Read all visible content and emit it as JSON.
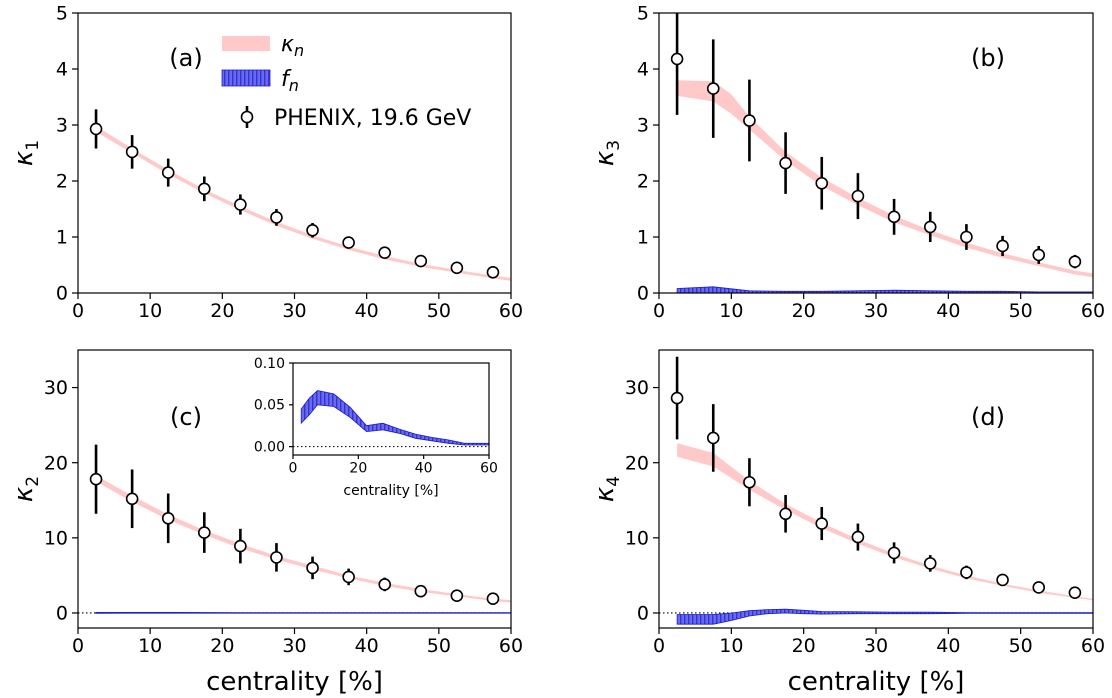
{
  "chart_data": {
    "type": "scatter",
    "legend": {
      "placement": "top",
      "entries": [
        {
          "key": "kappa",
          "symbol": "κ",
          "sub": "n",
          "style": "band",
          "color": "#ffc9c9"
        },
        {
          "key": "f",
          "symbol": "f",
          "sub": "n",
          "style": "hatched-band",
          "color": "#6a6af0"
        },
        {
          "key": "phenix",
          "label": "PHENIX, 19.6 GeV",
          "style": "open-circle-errorbar",
          "color": "#000000"
        }
      ]
    },
    "colors": {
      "kappa_band": "#ffc9c9",
      "f_band": "#6a6af0",
      "f_edge": "#1c1cc8",
      "data": "#000000",
      "zero_line": "#000000"
    },
    "panels": [
      {
        "id": "a",
        "label": "(a)",
        "ysymbol": "κ",
        "ysub": "1",
        "xlim": [
          0,
          60
        ],
        "ylim": [
          0,
          5
        ],
        "xticks": [
          0,
          10,
          20,
          30,
          40,
          50,
          60
        ],
        "yticks": [
          0,
          1,
          2,
          3,
          4,
          5
        ],
        "show_xlabel": false,
        "data": {
          "x": [
            2.5,
            7.5,
            12.5,
            17.5,
            22.5,
            27.5,
            32.5,
            37.5,
            42.5,
            47.5,
            52.5,
            57.5
          ],
          "y": [
            2.93,
            2.52,
            2.15,
            1.86,
            1.58,
            1.35,
            1.12,
            0.9,
            0.72,
            0.57,
            0.45,
            0.37
          ],
          "err": [
            0.35,
            0.3,
            0.25,
            0.22,
            0.18,
            0.15,
            0.13,
            0.07,
            0.05,
            0.04,
            0.03,
            0.03
          ]
        },
        "kappa_band": {
          "x": [
            2.5,
            7.5,
            12.5,
            17.5,
            22.5,
            27.5,
            32.5,
            37.5,
            42.5,
            47.5,
            52.5,
            57.5,
            60
          ],
          "lo": [
            2.88,
            2.5,
            2.12,
            1.78,
            1.48,
            1.2,
            0.97,
            0.77,
            0.6,
            0.47,
            0.36,
            0.26,
            0.22
          ],
          "hi": [
            2.98,
            2.58,
            2.2,
            1.85,
            1.55,
            1.27,
            1.03,
            0.83,
            0.66,
            0.52,
            0.41,
            0.31,
            0.27
          ]
        }
      },
      {
        "id": "b",
        "label": "(b)",
        "ysymbol": "κ",
        "ysub": "3",
        "xlim": [
          0,
          60
        ],
        "ylim": [
          0,
          5
        ],
        "xticks": [
          0,
          10,
          20,
          30,
          40,
          50,
          60
        ],
        "yticks": [
          0,
          1,
          2,
          3,
          4,
          5
        ],
        "show_xlabel": false,
        "data": {
          "x": [
            2.5,
            7.5,
            12.5,
            17.5,
            22.5,
            27.5,
            32.5,
            37.5,
            42.5,
            47.5,
            52.5,
            57.5
          ],
          "y": [
            4.18,
            3.65,
            3.08,
            2.32,
            1.96,
            1.73,
            1.36,
            1.18,
            1.0,
            0.84,
            0.68,
            0.56
          ],
          "err": [
            1.0,
            0.88,
            0.73,
            0.55,
            0.47,
            0.41,
            0.32,
            0.27,
            0.23,
            0.18,
            0.16,
            0.12
          ]
        },
        "kappa_band": {
          "x": [
            2.5,
            7.5,
            10,
            12.5,
            17.5,
            22.5,
            27.5,
            32.5,
            37.5,
            42.5,
            47.5,
            52.5,
            57.5,
            60
          ],
          "lo": [
            3.52,
            3.42,
            3.2,
            2.92,
            2.36,
            1.91,
            1.57,
            1.26,
            1.03,
            0.81,
            0.63,
            0.48,
            0.33,
            0.28
          ],
          "hi": [
            3.8,
            3.78,
            3.55,
            3.15,
            2.52,
            2.06,
            1.7,
            1.38,
            1.12,
            0.9,
            0.71,
            0.55,
            0.4,
            0.35
          ]
        },
        "f_band": {
          "x": [
            2.5,
            7.5,
            12.5,
            17.5,
            22.5,
            27.5,
            32.5,
            37.5,
            42.5,
            47.5,
            52.5,
            57.5,
            60
          ],
          "lo": [
            -0.07,
            -0.06,
            -0.03,
            -0.03,
            -0.04,
            -0.02,
            -0.01,
            -0.01,
            -0.02,
            -0.01,
            -0.01,
            -0.01,
            -0.01
          ],
          "hi": [
            0.08,
            0.11,
            0.04,
            0.03,
            0.03,
            0.04,
            0.05,
            0.04,
            0.03,
            0.03,
            0.02,
            0.02,
            0.02
          ]
        }
      },
      {
        "id": "c",
        "label": "(c)",
        "ysymbol": "κ",
        "ysub": "2",
        "xlim": [
          0,
          60
        ],
        "ylim": [
          -2,
          35
        ],
        "xticks": [
          0,
          10,
          20,
          30,
          40,
          50,
          60
        ],
        "yticks": [
          0,
          10,
          20,
          30
        ],
        "show_xlabel": true,
        "data": {
          "x": [
            2.5,
            7.5,
            12.5,
            17.5,
            22.5,
            27.5,
            32.5,
            37.5,
            42.5,
            47.5,
            52.5,
            57.5
          ],
          "y": [
            17.8,
            15.2,
            12.6,
            10.7,
            8.9,
            7.4,
            6.0,
            4.8,
            3.8,
            2.9,
            2.3,
            1.9
          ],
          "err": [
            4.6,
            3.9,
            3.3,
            2.7,
            2.3,
            1.9,
            1.5,
            1.1,
            0.9,
            0.6,
            0.4,
            0.3
          ]
        },
        "kappa_band": {
          "x": [
            2.5,
            7.5,
            12.5,
            17.5,
            22.5,
            27.5,
            32.5,
            37.5,
            42.5,
            47.5,
            52.5,
            57.5,
            60
          ],
          "lo": [
            17.5,
            14.8,
            12.4,
            10.4,
            8.6,
            7.1,
            5.8,
            4.6,
            3.6,
            2.8,
            2.2,
            1.6,
            1.4
          ],
          "hi": [
            18.3,
            15.6,
            13.1,
            11.0,
            9.2,
            7.6,
            6.3,
            5.0,
            4.0,
            3.2,
            2.5,
            1.9,
            1.7
          ]
        },
        "f_band": {
          "x": [
            2.5,
            7.5,
            12.5,
            17.5,
            22.5,
            27.5,
            32.5,
            37.5,
            42.5,
            47.5,
            52.5,
            57.5,
            60
          ],
          "lo": [
            -0.04,
            -0.03,
            -0.03,
            -0.03,
            -0.03,
            -0.03,
            -0.03,
            -0.03,
            -0.03,
            -0.03,
            -0.03,
            -0.03,
            -0.03
          ],
          "hi": [
            0.07,
            0.08,
            0.07,
            0.06,
            0.05,
            0.05,
            0.05,
            0.04,
            0.04,
            0.04,
            0.04,
            0.04,
            0.04
          ]
        },
        "inset": {
          "xlim": [
            0,
            60
          ],
          "ylim": [
            -0.01,
            0.1
          ],
          "xticks": [
            0,
            20,
            40,
            60
          ],
          "yticks": [
            0.0,
            0.05,
            0.1
          ],
          "ytick_labels": [
            "0.00",
            "0.05",
            "0.10"
          ],
          "xlabel": "centrality [%]",
          "f_band": {
            "x": [
              2.5,
              5,
              7.5,
              12.5,
              17.5,
              22.5,
              27.5,
              32.5,
              37.5,
              42.5,
              47.5,
              52.5,
              57.5,
              60
            ],
            "lo": [
              0.028,
              0.038,
              0.05,
              0.048,
              0.035,
              0.018,
              0.02,
              0.016,
              0.01,
              0.007,
              0.004,
              0.002,
              0.002,
              0.002
            ],
            "hi": [
              0.045,
              0.058,
              0.067,
              0.063,
              0.047,
              0.025,
              0.028,
              0.021,
              0.015,
              0.011,
              0.008,
              0.004,
              0.004,
              0.004
            ]
          }
        }
      },
      {
        "id": "d",
        "label": "(d)",
        "ysymbol": "κ",
        "ysub": "4",
        "xlim": [
          0,
          60
        ],
        "ylim": [
          -2,
          35
        ],
        "xticks": [
          0,
          10,
          20,
          30,
          40,
          50,
          60
        ],
        "yticks": [
          0,
          10,
          20,
          30
        ],
        "show_xlabel": true,
        "data": {
          "x": [
            2.5,
            7.5,
            12.5,
            17.5,
            22.5,
            27.5,
            32.5,
            37.5,
            42.5,
            47.5,
            52.5,
            57.5
          ],
          "y": [
            28.6,
            23.3,
            17.4,
            13.2,
            11.9,
            10.1,
            8.0,
            6.6,
            5.4,
            4.4,
            3.4,
            2.7
          ],
          "err": [
            5.5,
            4.5,
            3.2,
            2.5,
            2.2,
            1.8,
            1.4,
            1.1,
            0.9,
            0.5,
            0.4,
            0.3
          ]
        },
        "kappa_band": {
          "x": [
            2.5,
            7.5,
            12.5,
            17.5,
            22.5,
            27.5,
            32.5,
            37.5,
            42.5,
            47.5,
            52.5,
            57.5,
            60
          ],
          "lo": [
            20.8,
            19.5,
            16.4,
            13.7,
            11.3,
            9.2,
            7.4,
            5.9,
            4.6,
            3.6,
            2.7,
            2.0,
            1.7
          ],
          "hi": [
            22.6,
            21.3,
            17.6,
            14.5,
            12.0,
            9.8,
            7.9,
            6.3,
            5.0,
            3.9,
            3.0,
            2.2,
            1.9
          ]
        },
        "f_band": {
          "x": [
            2.5,
            7.5,
            10,
            12.5,
            15,
            17.5,
            20,
            22.5,
            27.5,
            32.5,
            37.5,
            42.5,
            47.5,
            52.5,
            57.5,
            60
          ],
          "lo": [
            -1.5,
            -1.5,
            -1.0,
            -0.4,
            -0.1,
            0.0,
            -0.1,
            -0.15,
            -0.1,
            -0.1,
            -0.1,
            -0.05,
            -0.05,
            -0.05,
            -0.05,
            -0.05
          ],
          "hi": [
            -0.2,
            -0.2,
            0.0,
            0.3,
            0.45,
            0.5,
            0.35,
            0.2,
            0.15,
            0.1,
            0.1,
            0.05,
            0.05,
            0.05,
            0.05,
            0.05
          ]
        }
      }
    ],
    "xlabel": "centrality [%]"
  }
}
